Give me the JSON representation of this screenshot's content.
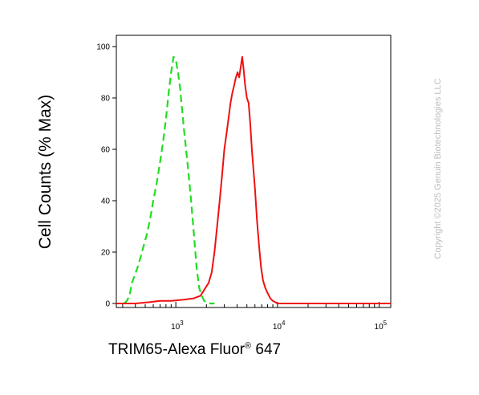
{
  "chart_data": {
    "type": "line",
    "title": "",
    "xlabel": "TRIM65-Alexa Fluor",
    "xlabel_superscript": "®",
    "xlabel_suffix": " 647",
    "ylabel": "Cell Counts (% Max)",
    "x_scale": "log",
    "xlim": [
      260,
      130000
    ],
    "ylim": [
      0,
      100
    ],
    "x_ticks": [
      {
        "value": 1000,
        "base": "10",
        "exp": "3"
      },
      {
        "value": 10000,
        "base": "10",
        "exp": "4"
      },
      {
        "value": 100000,
        "base": "10",
        "exp": "5"
      }
    ],
    "y_ticks": [
      0,
      20,
      40,
      60,
      80,
      100
    ],
    "y_tick_labels": [
      "0",
      "20",
      "40",
      "60",
      "80",
      "100"
    ],
    "grid": false,
    "legend": "none",
    "series": [
      {
        "color": "#22dd22",
        "dash": "dashed",
        "x": [
          310,
          330,
          350,
          370,
          395,
          420,
          450,
          480,
          520,
          560,
          600,
          650,
          700,
          750,
          800,
          850,
          900,
          950,
          1000,
          1050,
          1100,
          1150,
          1200,
          1300,
          1400,
          1500,
          1600,
          1700,
          1800,
          1900,
          2000,
          2100,
          2200,
          2400
        ],
        "y": [
          0,
          1,
          3,
          8,
          11,
          14,
          18,
          22,
          27,
          33,
          40,
          47,
          55,
          63,
          72,
          82,
          90,
          96,
          95,
          90,
          84,
          76,
          68,
          55,
          42,
          28,
          14,
          6,
          3,
          1,
          0.5,
          0.2,
          0,
          0
        ]
      },
      {
        "color": "#ee1111",
        "dash": "solid",
        "x": [
          260,
          400,
          550,
          700,
          900,
          1200,
          1500,
          1750,
          1950,
          2100,
          2250,
          2400,
          2550,
          2700,
          2850,
          3000,
          3150,
          3300,
          3450,
          3600,
          3750,
          3900,
          4050,
          4200,
          4350,
          4500,
          4650,
          4800,
          5000,
          5200,
          5400,
          5600,
          5800,
          6000,
          6300,
          6600,
          6900,
          7200,
          7600,
          8000,
          8500,
          9000,
          9500,
          10000,
          11000,
          12000,
          15000,
          20000,
          30000,
          50000,
          80000,
          130000
        ],
        "y": [
          0,
          0,
          0.5,
          1,
          1,
          1.5,
          2,
          3,
          6,
          8,
          12,
          20,
          30,
          40,
          50,
          60,
          66,
          72,
          78,
          82,
          85,
          88,
          90,
          88,
          92,
          96,
          91,
          85,
          80,
          78,
          70,
          60,
          52,
          45,
          32,
          22,
          14,
          9,
          6,
          4,
          2,
          1,
          0.5,
          0,
          0,
          0,
          0,
          0,
          0,
          0,
          0,
          0
        ]
      }
    ]
  },
  "copyright": "Copyright ©2025 Genuin Biotechnologies LLC"
}
